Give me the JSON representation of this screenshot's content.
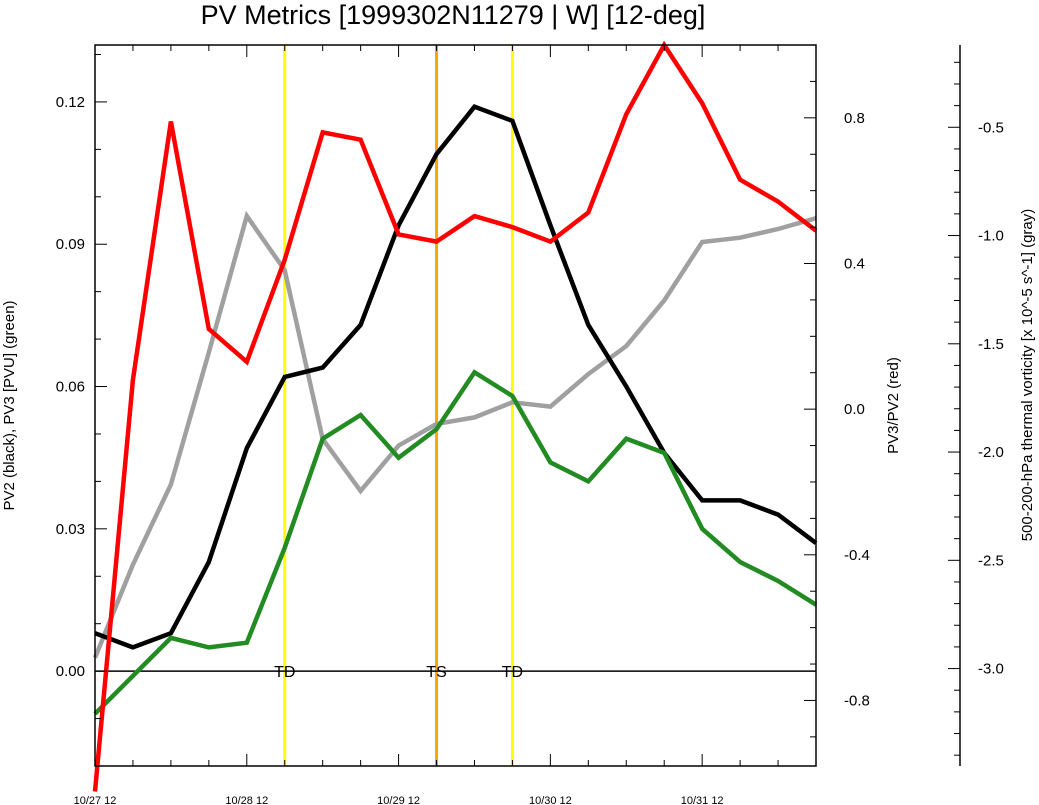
{
  "chart_data": {
    "type": "line",
    "title": "PV Metrics [1999302N11279 | W] [12-deg]",
    "left_axis": {
      "label": "PV2 (black), PV3 [PVU] (green)",
      "ylim": [
        -0.02,
        0.132
      ],
      "ticks": [
        0.0,
        0.03,
        0.06,
        0.09,
        0.12
      ],
      "tick_labels": [
        "0.00",
        "0.03",
        "0.06",
        "0.09",
        "0.12"
      ]
    },
    "right_axis": {
      "label": "PV3/PV2 (red)",
      "ylim": [
        -0.98,
        1.0
      ],
      "ticks": [
        -0.8,
        -0.4,
        0.0,
        0.4,
        0.8
      ],
      "tick_labels": [
        "-0.8",
        "-0.4",
        "0.0",
        "0.4",
        "0.8"
      ]
    },
    "far_right_axis": {
      "label": "500-200-hPa thermal vorticity [x 10^-5 s^-1] (gray)",
      "ylim": [
        -3.45,
        -0.12
      ],
      "ticks": [
        -3.0,
        -2.5,
        -2.0,
        -1.5,
        -1.0,
        -0.5
      ],
      "tick_labels": [
        "-3.0",
        "-2.5",
        "-2.0",
        "-1.5",
        "-1.0",
        "-0.5"
      ]
    },
    "x_axis": {
      "unit": "hours since 10/27 12",
      "xlim": [
        0,
        114
      ],
      "ticks": [
        0,
        24,
        48,
        72,
        96
      ],
      "tick_labels": [
        "10/27 12",
        "10/28 12",
        "10/29 12",
        "10/30 12",
        "10/31 12"
      ]
    },
    "x": [
      0,
      6,
      12,
      18,
      24,
      30,
      36,
      42,
      48,
      54,
      60,
      66,
      72,
      78,
      84,
      90,
      96,
      102,
      108,
      114
    ],
    "series": [
      {
        "name": "PV2",
        "axis": "left",
        "color": "#000000",
        "values": [
          0.008,
          0.005,
          0.008,
          0.023,
          0.047,
          0.062,
          0.064,
          0.073,
          0.094,
          0.109,
          0.119,
          0.116,
          0.094,
          0.073,
          0.06,
          0.046,
          0.036,
          0.036,
          0.033,
          0.027
        ]
      },
      {
        "name": "PV3",
        "axis": "left",
        "color": "#228b22",
        "values": [
          -0.009,
          -0.001,
          0.007,
          0.005,
          0.006,
          0.026,
          0.049,
          0.054,
          0.045,
          0.051,
          0.063,
          0.058,
          0.044,
          0.04,
          0.049,
          0.046,
          0.03,
          0.023,
          0.019,
          0.014
        ]
      },
      {
        "name": "PV3/PV2",
        "axis": "right",
        "color": "#ff0000",
        "values": [
          -1.05,
          0.08,
          0.79,
          0.22,
          0.13,
          0.41,
          0.76,
          0.74,
          0.48,
          0.46,
          0.53,
          0.5,
          0.46,
          0.54,
          0.81,
          1.0,
          0.84,
          0.63,
          0.57,
          0.49
        ]
      },
      {
        "name": "thermal vorticity",
        "axis": "far_right",
        "color": "#a0a0a0",
        "values": [
          -2.95,
          -2.52,
          -2.15,
          -1.54,
          -0.91,
          -1.16,
          -1.94,
          -2.18,
          -1.97,
          -1.87,
          -1.84,
          -1.77,
          -1.79,
          -1.64,
          -1.51,
          -1.3,
          -1.03,
          -1.01,
          -0.97,
          -0.92
        ]
      }
    ],
    "zero_line": 0.0,
    "vertical_markers": [
      {
        "x": 30,
        "color": "#ffff00",
        "label": "TD"
      },
      {
        "x": 54,
        "color": "#ffa500",
        "label": "TS"
      },
      {
        "x": 66,
        "color": "#ffff00",
        "label": "TD"
      }
    ],
    "grid": false,
    "legend": "none"
  }
}
